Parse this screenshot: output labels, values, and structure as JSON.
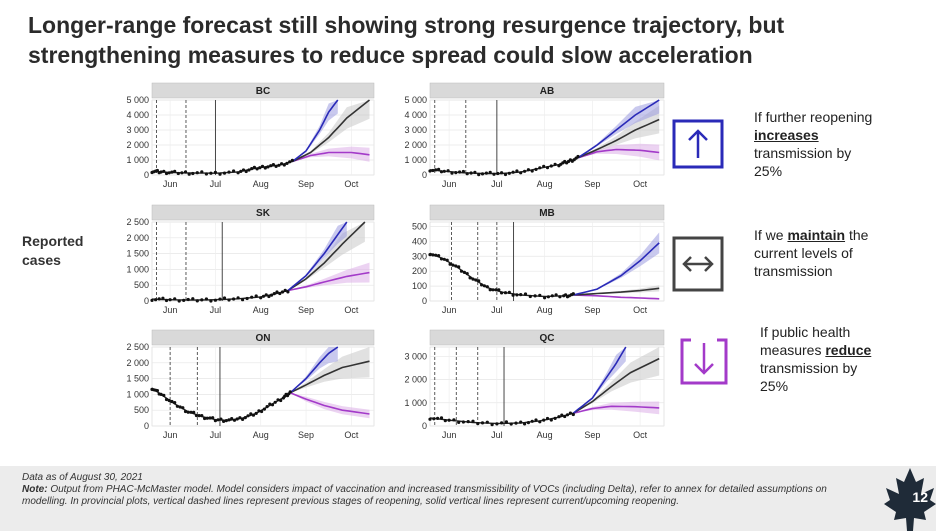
{
  "title": "Longer-range forecast still showing strong resurgence trajectory, but strengthening measures to reduce spread could slow acceleration",
  "y_axis_label_line1": "Reported",
  "y_axis_label_line2": "cases",
  "colors": {
    "increase": "#2a2ab8",
    "maintain": "#333333",
    "reduce": "#a33ac9",
    "increase_band": "#9c9ce0",
    "maintain_band": "#c8c8c8",
    "reduce_band": "#dcaee8",
    "strip": "#d9d9d9"
  },
  "legend": [
    {
      "key": "increase",
      "icon": "arrow-up-icon",
      "pre": "If further reopening",
      "bold": "increases",
      "post1": "transmission by",
      "post2": "25%"
    },
    {
      "key": "maintain",
      "icon": "arrow-left-right-icon",
      "pre": "If we",
      "bold": "maintain",
      "post1": "the",
      "post2": "current levels of",
      "post3": "transmission"
    },
    {
      "key": "reduce",
      "icon": "arrow-down-icon",
      "pre": "If public health",
      "pre2": "measures",
      "bold": "reduce",
      "post1": "transmission by",
      "post2": "25%"
    }
  ],
  "chart_data": [
    {
      "type": "line",
      "province": "BC",
      "yticks": [
        0,
        1000,
        2000,
        3000,
        4000,
        5000
      ],
      "ytick_labels": [
        "0",
        "1 000",
        "2 000",
        "3 000",
        "4 000",
        "5 000"
      ],
      "ylim": [
        0,
        5000
      ],
      "xticks": [
        "Jun",
        "Jul",
        "Aug",
        "Sep",
        "Oct"
      ],
      "xtick_months": [
        0.5,
        1.5,
        2.5,
        3.5,
        4.5
      ],
      "xlim": [
        0.1,
        5.0
      ],
      "dashed_x": [
        0.2,
        0.85
      ],
      "solid_x": [
        1.5
      ],
      "observed": [
        [
          0.1,
          250
        ],
        [
          0.3,
          200
        ],
        [
          0.6,
          160
        ],
        [
          1.0,
          130
        ],
        [
          1.5,
          120
        ],
        [
          2.0,
          200
        ],
        [
          2.3,
          400
        ],
        [
          2.6,
          550
        ],
        [
          2.9,
          650
        ],
        [
          3.2,
          900
        ]
      ],
      "forecast_start": 3.2,
      "series": [
        {
          "name": "increase",
          "x": [
            3.2,
            3.5,
            3.8,
            4.0,
            4.2
          ],
          "y": [
            900,
            1600,
            3000,
            4200,
            5000
          ]
        },
        {
          "name": "maintain",
          "x": [
            3.2,
            3.6,
            4.0,
            4.4,
            4.9
          ],
          "y": [
            900,
            1500,
            2500,
            3800,
            5000
          ]
        },
        {
          "name": "reduce",
          "x": [
            3.2,
            3.6,
            4.0,
            4.5,
            4.9
          ],
          "y": [
            900,
            1300,
            1500,
            1500,
            1350
          ]
        }
      ]
    },
    {
      "type": "line",
      "province": "AB",
      "yticks": [
        0,
        1000,
        2000,
        3000,
        4000,
        5000
      ],
      "ytick_labels": [
        "0",
        "1 000",
        "2 000",
        "3 000",
        "4 000",
        "5 000"
      ],
      "ylim": [
        0,
        5000
      ],
      "xticks": [
        "Jun",
        "Jul",
        "Aug",
        "Sep",
        "Oct"
      ],
      "xtick_months": [
        0.5,
        1.5,
        2.5,
        3.5,
        4.5
      ],
      "xlim": [
        0.1,
        5.0
      ],
      "dashed_x": [
        0.2,
        0.85
      ],
      "solid_x": [
        1.5
      ],
      "observed": [
        [
          0.1,
          350
        ],
        [
          0.4,
          250
        ],
        [
          0.8,
          150
        ],
        [
          1.2,
          100
        ],
        [
          1.6,
          100
        ],
        [
          2.0,
          200
        ],
        [
          2.4,
          450
        ],
        [
          2.8,
          700
        ],
        [
          3.0,
          900
        ],
        [
          3.2,
          1150
        ]
      ],
      "forecast_start": 3.2,
      "series": [
        {
          "name": "increase",
          "x": [
            3.2,
            3.6,
            4.0,
            4.4,
            4.9
          ],
          "y": [
            1150,
            2000,
            3000,
            4000,
            5000
          ]
        },
        {
          "name": "maintain",
          "x": [
            3.2,
            3.6,
            4.0,
            4.4,
            4.9
          ],
          "y": [
            1150,
            1700,
            2300,
            3000,
            3700
          ]
        },
        {
          "name": "reduce",
          "x": [
            3.2,
            3.6,
            4.0,
            4.5,
            4.9
          ],
          "y": [
            1150,
            1550,
            1700,
            1650,
            1500
          ]
        }
      ]
    },
    {
      "type": "line",
      "province": "SK",
      "yticks": [
        0,
        500,
        1000,
        1500,
        2000,
        2500
      ],
      "ytick_labels": [
        "0",
        "500",
        "1 000",
        "1 500",
        "2 000",
        "2 500"
      ],
      "ylim": [
        0,
        2500
      ],
      "xticks": [
        "Jun",
        "Jul",
        "Aug",
        "Sep",
        "Oct"
      ],
      "xtick_months": [
        0.5,
        1.5,
        2.5,
        3.5,
        4.5
      ],
      "xlim": [
        0.1,
        5.0
      ],
      "dashed_x": [
        0.2,
        0.85
      ],
      "solid_x": [
        1.65
      ],
      "observed": [
        [
          0.1,
          60
        ],
        [
          0.5,
          40
        ],
        [
          1.0,
          30
        ],
        [
          1.5,
          40
        ],
        [
          2.0,
          70
        ],
        [
          2.5,
          130
        ],
        [
          2.8,
          220
        ],
        [
          3.1,
          330
        ]
      ],
      "forecast_start": 3.1,
      "series": [
        {
          "name": "increase",
          "x": [
            3.1,
            3.5,
            3.9,
            4.2,
            4.4
          ],
          "y": [
            330,
            800,
            1500,
            2100,
            2500
          ]
        },
        {
          "name": "maintain",
          "x": [
            3.1,
            3.5,
            3.9,
            4.3,
            4.8
          ],
          "y": [
            330,
            700,
            1200,
            1800,
            2500
          ]
        },
        {
          "name": "reduce",
          "x": [
            3.1,
            3.5,
            3.9,
            4.4,
            4.9
          ],
          "y": [
            330,
            450,
            600,
            780,
            900
          ]
        }
      ]
    },
    {
      "type": "line",
      "province": "MB",
      "yticks": [
        0,
        100,
        200,
        300,
        400,
        500
      ],
      "ytick_labels": [
        "0",
        "100",
        "200",
        "300",
        "400",
        "500"
      ],
      "ylim": [
        0,
        530
      ],
      "xticks": [
        "Jun",
        "Jul",
        "Aug",
        "Sep",
        "Oct"
      ],
      "xtick_months": [
        0.5,
        1.5,
        2.5,
        3.5,
        4.5
      ],
      "xlim": [
        0.1,
        5.0
      ],
      "dashed_x": [
        0.55,
        1.1,
        1.5
      ],
      "solid_x": [
        1.85
      ],
      "observed": [
        [
          0.1,
          320
        ],
        [
          0.4,
          280
        ],
        [
          0.7,
          220
        ],
        [
          1.0,
          150
        ],
        [
          1.3,
          90
        ],
        [
          1.6,
          60
        ],
        [
          2.0,
          40
        ],
        [
          2.5,
          30
        ],
        [
          2.9,
          35
        ],
        [
          3.1,
          40
        ]
      ],
      "forecast_start": 3.1,
      "series": [
        {
          "name": "increase",
          "x": [
            3.1,
            3.6,
            4.1,
            4.5,
            4.9
          ],
          "y": [
            40,
            80,
            170,
            270,
            390
          ]
        },
        {
          "name": "maintain",
          "x": [
            3.1,
            3.6,
            4.1,
            4.5,
            4.9
          ],
          "y": [
            40,
            50,
            60,
            70,
            85
          ]
        },
        {
          "name": "reduce",
          "x": [
            3.1,
            3.6,
            4.1,
            4.5,
            4.9
          ],
          "y": [
            40,
            35,
            25,
            20,
            15
          ]
        }
      ]
    },
    {
      "type": "line",
      "province": "ON",
      "yticks": [
        0,
        500,
        1000,
        1500,
        2000,
        2500
      ],
      "ytick_labels": [
        "0",
        "500",
        "1 000",
        "1 500",
        "2 000",
        "2 500"
      ],
      "ylim": [
        0,
        2500
      ],
      "xticks": [
        "Jun",
        "Jul",
        "Aug",
        "Sep",
        "Oct"
      ],
      "xtick_months": [
        0.5,
        1.5,
        2.5,
        3.5,
        4.5
      ],
      "xlim": [
        0.1,
        5.0
      ],
      "dashed_x": [
        0.5,
        1.1
      ],
      "solid_x": [
        1.6
      ],
      "observed": [
        [
          0.1,
          1200
        ],
        [
          0.3,
          1000
        ],
        [
          0.6,
          700
        ],
        [
          0.9,
          450
        ],
        [
          1.2,
          300
        ],
        [
          1.5,
          200
        ],
        [
          1.8,
          180
        ],
        [
          2.1,
          250
        ],
        [
          2.4,
          400
        ],
        [
          2.7,
          650
        ],
        [
          3.0,
          900
        ],
        [
          3.15,
          1050
        ]
      ],
      "forecast_start": 3.15,
      "series": [
        {
          "name": "increase",
          "x": [
            3.15,
            3.5,
            3.8,
            4.0,
            4.2
          ],
          "y": [
            1050,
            1500,
            2000,
            2300,
            2500
          ]
        },
        {
          "name": "maintain",
          "x": [
            3.15,
            3.5,
            3.9,
            4.3,
            4.9
          ],
          "y": [
            1050,
            1300,
            1600,
            1850,
            2050
          ]
        },
        {
          "name": "reduce",
          "x": [
            3.15,
            3.5,
            3.9,
            4.3,
            4.9
          ],
          "y": [
            1050,
            850,
            650,
            500,
            380
          ]
        }
      ]
    },
    {
      "type": "line",
      "province": "QC",
      "yticks": [
        0,
        1000,
        2000,
        3000
      ],
      "ytick_labels": [
        "0",
        "1 000",
        "2 000",
        "3 000"
      ],
      "ylim": [
        0,
        3400
      ],
      "xticks": [
        "Jun",
        "Jul",
        "Aug",
        "Sep",
        "Oct"
      ],
      "xtick_months": [
        0.5,
        1.5,
        2.5,
        3.5,
        4.5
      ],
      "xlim": [
        0.1,
        5.0
      ],
      "dashed_x": [
        0.2,
        0.65,
        1.1
      ],
      "solid_x": [
        1.65
      ],
      "observed": [
        [
          0.1,
          350
        ],
        [
          0.5,
          250
        ],
        [
          1.0,
          150
        ],
        [
          1.5,
          110
        ],
        [
          2.0,
          130
        ],
        [
          2.4,
          220
        ],
        [
          2.8,
          380
        ],
        [
          3.1,
          550
        ]
      ],
      "forecast_start": 3.1,
      "series": [
        {
          "name": "increase",
          "x": [
            3.1,
            3.5,
            3.8,
            4.0,
            4.2
          ],
          "y": [
            550,
            1200,
            2100,
            2700,
            3400
          ]
        },
        {
          "name": "maintain",
          "x": [
            3.1,
            3.5,
            3.9,
            4.3,
            4.9
          ],
          "y": [
            550,
            1050,
            1700,
            2300,
            2900
          ]
        },
        {
          "name": "reduce",
          "x": [
            3.1,
            3.5,
            3.9,
            4.4,
            4.9
          ],
          "y": [
            550,
            750,
            850,
            830,
            780
          ]
        }
      ]
    }
  ],
  "footer": {
    "date_line": "Data as of August 30, 2021",
    "note_label": "Note:",
    "note_text": "Output from PHAC-McMaster model. Model considers impact of vaccination and increased transmissibility of VOCs (including Delta), refer to annex for detailed assumptions on modelling. In provincial plots, vertical dashed lines represent previous stages of reopening, solid vertical lines represent current/upcoming reopening."
  },
  "page_number": "12"
}
